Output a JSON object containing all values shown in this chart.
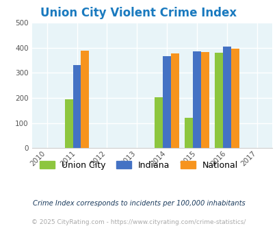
{
  "title": "Union City Violent Crime Index",
  "title_color": "#1a7abf",
  "years": [
    2010,
    2011,
    2012,
    2013,
    2014,
    2015,
    2016,
    2017
  ],
  "bar_years": [
    2011,
    2014,
    2015,
    2016
  ],
  "union_city": [
    195,
    202,
    120,
    380
  ],
  "indiana": [
    330,
    365,
    385,
    405
  ],
  "national": [
    388,
    377,
    383,
    395
  ],
  "bar_color_uc": "#8dc63f",
  "bar_color_in": "#4472c4",
  "bar_color_na": "#f7941d",
  "ylim": [
    0,
    500
  ],
  "yticks": [
    0,
    100,
    200,
    300,
    400,
    500
  ],
  "xlim": [
    2009.5,
    2017.5
  ],
  "background_color": "#e8f4f8",
  "grid_color": "#ffffff",
  "legend_labels": [
    "Union City",
    "Indiana",
    "National"
  ],
  "footnote1": "Crime Index corresponds to incidents per 100,000 inhabitants",
  "footnote2": "© 2025 CityRating.com - https://www.cityrating.com/crime-statistics/",
  "footnote1_color": "#1a3a5c",
  "footnote2_color": "#aaaaaa"
}
